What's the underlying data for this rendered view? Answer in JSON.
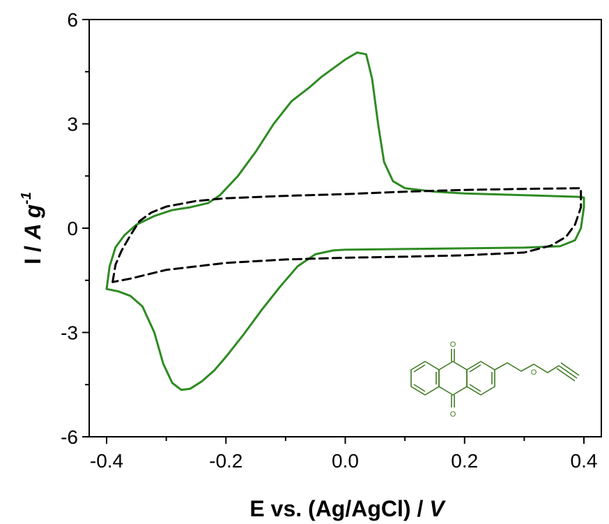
{
  "chart_data": {
    "type": "line",
    "xlabel_main": "E vs. (Ag/AgCl) / ",
    "xlabel_unit": "V",
    "ylabel_main": "I / ",
    "ylabel_unit": "A g",
    "ylabel_sup": "-1",
    "xlim": [
      -0.4,
      0.4
    ],
    "ylim": [
      -6,
      6
    ],
    "xticks": [
      -0.4,
      -0.2,
      0.0,
      0.2,
      0.4
    ],
    "xtick_labels": [
      "-0.4",
      "-0.2",
      "0.0",
      "0.2",
      "0.4"
    ],
    "yticks": [
      -6,
      -3,
      0,
      3,
      6
    ],
    "ytick_labels": [
      "-6",
      "-3",
      "0",
      "3",
      "6"
    ],
    "grid": false,
    "series": [
      {
        "style": "solid",
        "color": "#2e8b22",
        "points": [
          [
            -0.4,
            -1.75
          ],
          [
            -0.395,
            -1.1
          ],
          [
            -0.385,
            -0.55
          ],
          [
            -0.37,
            -0.2
          ],
          [
            -0.35,
            0.1
          ],
          [
            -0.32,
            0.35
          ],
          [
            -0.29,
            0.52
          ],
          [
            -0.26,
            0.6
          ],
          [
            -0.23,
            0.72
          ],
          [
            -0.21,
            0.95
          ],
          [
            -0.18,
            1.5
          ],
          [
            -0.15,
            2.2
          ],
          [
            -0.12,
            3.0
          ],
          [
            -0.09,
            3.65
          ],
          [
            -0.06,
            4.05
          ],
          [
            -0.04,
            4.35
          ],
          [
            -0.02,
            4.6
          ],
          [
            0.0,
            4.85
          ],
          [
            0.02,
            5.05
          ],
          [
            0.035,
            5.0
          ],
          [
            0.045,
            4.3
          ],
          [
            0.055,
            3.0
          ],
          [
            0.065,
            1.9
          ],
          [
            0.08,
            1.35
          ],
          [
            0.1,
            1.15
          ],
          [
            0.15,
            1.05
          ],
          [
            0.2,
            1.0
          ],
          [
            0.3,
            0.95
          ],
          [
            0.39,
            0.9
          ],
          [
            0.4,
            0.88
          ],
          [
            0.4,
            0.6
          ],
          [
            0.395,
            0.0
          ],
          [
            0.385,
            -0.35
          ],
          [
            0.36,
            -0.52
          ],
          [
            0.3,
            -0.56
          ],
          [
            0.2,
            -0.58
          ],
          [
            0.1,
            -0.6
          ],
          [
            0.0,
            -0.62
          ],
          [
            -0.02,
            -0.64
          ],
          [
            -0.05,
            -0.75
          ],
          [
            -0.08,
            -1.1
          ],
          [
            -0.11,
            -1.7
          ],
          [
            -0.14,
            -2.35
          ],
          [
            -0.17,
            -3.05
          ],
          [
            -0.2,
            -3.7
          ],
          [
            -0.22,
            -4.1
          ],
          [
            -0.24,
            -4.4
          ],
          [
            -0.26,
            -4.62
          ],
          [
            -0.275,
            -4.65
          ],
          [
            -0.29,
            -4.45
          ],
          [
            -0.305,
            -3.9
          ],
          [
            -0.32,
            -3.0
          ],
          [
            -0.34,
            -2.25
          ],
          [
            -0.36,
            -1.95
          ],
          [
            -0.38,
            -1.82
          ],
          [
            -0.4,
            -1.75
          ]
        ]
      },
      {
        "style": "dashed",
        "color": "#000000",
        "points": [
          [
            -0.39,
            -1.55
          ],
          [
            -0.385,
            -1.05
          ],
          [
            -0.375,
            -0.65
          ],
          [
            -0.36,
            -0.2
          ],
          [
            -0.345,
            0.2
          ],
          [
            -0.325,
            0.45
          ],
          [
            -0.3,
            0.62
          ],
          [
            -0.25,
            0.78
          ],
          [
            -0.2,
            0.86
          ],
          [
            -0.1,
            0.93
          ],
          [
            0.0,
            0.98
          ],
          [
            0.1,
            1.05
          ],
          [
            0.2,
            1.1
          ],
          [
            0.3,
            1.13
          ],
          [
            0.395,
            1.15
          ],
          [
            0.395,
            0.6
          ],
          [
            0.385,
            0.1
          ],
          [
            0.37,
            -0.25
          ],
          [
            0.345,
            -0.5
          ],
          [
            0.3,
            -0.7
          ],
          [
            0.2,
            -0.78
          ],
          [
            0.1,
            -0.82
          ],
          [
            0.0,
            -0.85
          ],
          [
            -0.1,
            -0.9
          ],
          [
            -0.2,
            -1.0
          ],
          [
            -0.3,
            -1.2
          ],
          [
            -0.36,
            -1.45
          ],
          [
            -0.39,
            -1.55
          ]
        ]
      }
    ],
    "inset_structure": {
      "description": "anthraquinone with CH2-O-CH2-C≡CH substituent",
      "oxygen_label": "O",
      "carbonyl_label": "O"
    }
  }
}
